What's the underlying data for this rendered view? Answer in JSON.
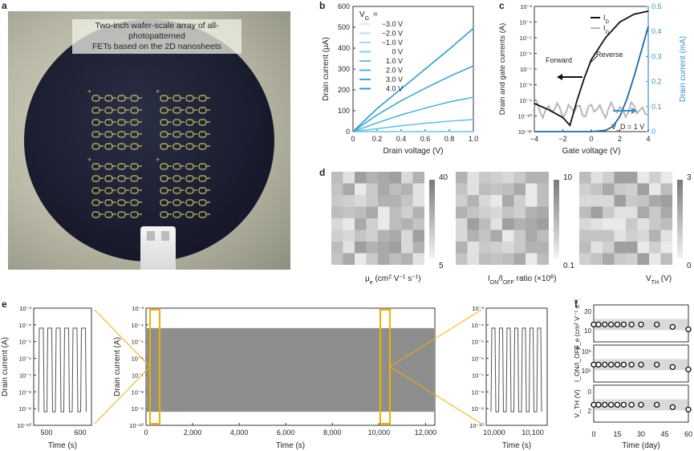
{
  "panels": {
    "a": "a",
    "b": "b",
    "c": "c",
    "d": "d",
    "e": "e",
    "f": "f"
  },
  "photo": {
    "caption_line1": "Two-inch wafer-scale array of all-photopatterned",
    "caption_line2": "FETs based on the 2D nanosheets"
  },
  "colors": {
    "series_b": [
      "#d6eef6",
      "#bde3f0",
      "#a3d8eb",
      "#86cce5",
      "#6cc0df",
      "#55b4d8",
      "#3ea8d1",
      "#2a9cca"
    ],
    "gate_blue": "#1a6aa8",
    "drain_black": "#111111",
    "gate_gray": "#b8b8b8",
    "axis_right": "#3a8fc9"
  },
  "chart_data": [
    {
      "id": "b",
      "type": "line",
      "title": "",
      "xlabel": "Drain voltage (V)",
      "ylabel": "Drain current (μA)",
      "xlim": [
        0,
        1.0
      ],
      "ylim": [
        0,
        600
      ],
      "xticks": [
        "0",
        "0.2",
        "0.4",
        "0.6",
        "0.8",
        "1.0"
      ],
      "yticks": [
        "0",
        "100",
        "200",
        "300",
        "400",
        "500",
        "600"
      ],
      "legend_title": "V_G =",
      "legend": [
        "−3.0 V",
        "−2.0 V",
        "−1.0 V",
        "0 V",
        "1.0 V",
        "2.0 V",
        "3.0 V",
        "4.0 V"
      ],
      "x": [
        0,
        0.2,
        0.4,
        0.6,
        0.8,
        1.0
      ],
      "series": [
        {
          "name": "−3.0 V",
          "values": [
            0,
            0,
            0,
            0,
            0,
            0
          ]
        },
        {
          "name": "−2.0 V",
          "values": [
            0,
            0,
            0,
            0,
            0,
            0
          ]
        },
        {
          "name": "−1.0 V",
          "values": [
            0,
            0,
            0,
            0,
            0,
            0
          ]
        },
        {
          "name": "0 V",
          "values": [
            0,
            0,
            0,
            0,
            0,
            0
          ]
        },
        {
          "name": "1.0 V",
          "values": [
            0,
            14,
            28,
            40,
            50,
            58
          ]
        },
        {
          "name": "2.0 V",
          "values": [
            0,
            42,
            80,
            113,
            142,
            165
          ]
        },
        {
          "name": "3.0 V",
          "values": [
            0,
            80,
            148,
            208,
            264,
            315
          ]
        },
        {
          "name": "4.0 V",
          "values": [
            0,
            110,
            205,
            300,
            395,
            495
          ]
        }
      ]
    },
    {
      "id": "c",
      "type": "line",
      "xlabel": "Gate voltage (V)",
      "ylabel_left": "Drain and gate currents (A)",
      "ylabel_right": "Drain current (mA)",
      "xlim": [
        -4,
        4
      ],
      "ylim_left_log": [
        -11,
        -3
      ],
      "ylim_right": [
        0,
        0.5
      ],
      "xticks": [
        "−4",
        "−2",
        "0",
        "2",
        "4"
      ],
      "yticks_left": [
        "10⁻¹¹",
        "10⁻¹⁰",
        "10⁻⁹",
        "10⁻⁸",
        "10⁻⁷",
        "10⁻⁶",
        "10⁻⁵",
        "10⁻⁴",
        "10⁻³"
      ],
      "yticks_right": [
        "0",
        "0.1",
        "0.2",
        "0.3",
        "0.4",
        "0.5"
      ],
      "legend": [
        "I_D",
        "I_G"
      ],
      "annotations": {
        "forward": "Forward",
        "reverse": "Reverse",
        "vd": "V_D = 1 V"
      },
      "id_log": {
        "x": [
          -4,
          -3,
          -2,
          -1.5,
          -1,
          -0.5,
          0,
          1,
          2,
          3,
          4
        ],
        "y": [
          -9.2,
          -9.6,
          -10.1,
          -10.6,
          -9.0,
          -7.6,
          -6.4,
          -5.0,
          -4.0,
          -3.5,
          -3.3
        ]
      },
      "id_lin": {
        "x": [
          -4,
          0,
          1,
          1.5,
          2,
          2.5,
          3,
          3.5,
          4
        ],
        "y": [
          0,
          0,
          0.005,
          0.02,
          0.06,
          0.13,
          0.22,
          0.32,
          0.42
        ]
      }
    },
    {
      "id": "d",
      "type": "heatmap",
      "maps": [
        {
          "label": "μ_e (cm² V⁻¹ s⁻¹)",
          "max": "40",
          "min": "5"
        },
        {
          "label": "I_ON/I_OFF ratio (×10⁶)",
          "max": "10",
          "min": "0.1"
        },
        {
          "label": "V_TH (V)",
          "max": "3",
          "min": "0"
        }
      ]
    },
    {
      "id": "e",
      "type": "line",
      "ylabel": "Drain current (A)",
      "xlabel": "Time (s)",
      "yticks": [
        "10⁻³",
        "10⁻⁴",
        "10⁻⁵",
        "10⁻⁶",
        "10⁻⁷",
        "10⁻⁸",
        "10⁻⁹",
        "10⁻¹⁰"
      ],
      "left_xticks": [
        "500",
        "600"
      ],
      "main_xticks": [
        "0",
        "2,000",
        "4,000",
        "6,000",
        "8,000",
        "10,000",
        "12,000"
      ],
      "right_xticks": [
        "10,000",
        "10,100"
      ],
      "on_level": "10⁻⁴",
      "off_level": "10⁻⁹"
    },
    {
      "id": "f",
      "type": "scatter",
      "xlabel": "Time (day)",
      "xticks": [
        "0",
        "15",
        "30",
        "45",
        "60"
      ],
      "x": [
        0,
        3,
        7,
        11,
        15,
        19,
        24,
        30,
        40,
        50,
        60
      ],
      "sub": [
        {
          "ylabel": "μ_e (cm² V⁻¹ s⁻¹)",
          "yticks": [
            "20",
            "10"
          ],
          "values": [
            14,
            14,
            14,
            14,
            14,
            14,
            14,
            13,
            13,
            12,
            11
          ]
        },
        {
          "ylabel": "I_ON/I_OFF",
          "yticks": [
            "10⁸",
            "10⁵"
          ],
          "values": [
            6.3,
            6.3,
            6.3,
            6.3,
            6.3,
            6.3,
            6.3,
            6.3,
            6.3,
            5.8,
            5.4
          ]
        },
        {
          "ylabel": "V_TH (V)",
          "yticks": [
            "0",
            "2"
          ],
          "values": [
            1.4,
            1.4,
            1.4,
            1.4,
            1.4,
            1.4,
            1.5,
            1.5,
            1.6,
            1.7,
            1.8
          ]
        }
      ]
    }
  ]
}
